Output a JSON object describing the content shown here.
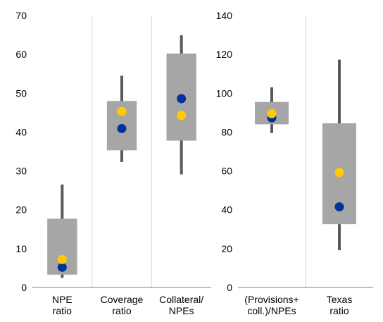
{
  "chart_data": [
    {
      "type": "boxplot",
      "ylim": [
        0,
        70
      ],
      "yticks": [
        "0",
        "10",
        "20",
        "30",
        "40",
        "50",
        "60",
        "70"
      ],
      "categories": [
        {
          "label_lines": [
            "NPE",
            "ratio"
          ],
          "whisker_low": 2.5,
          "q1": 3.3,
          "q3": 17.7,
          "whisker_high": 26.5,
          "blue": 5.2,
          "yellow": 7.2
        },
        {
          "label_lines": [
            "Coverage",
            "ratio"
          ],
          "whisker_low": 32.3,
          "q1": 35.3,
          "q3": 48.0,
          "whisker_high": 54.5,
          "blue": 40.9,
          "yellow": 45.3
        },
        {
          "label_lines": [
            "Collateral/",
            "NPEs"
          ],
          "whisker_low": 29.1,
          "q1": 37.8,
          "q3": 60.2,
          "whisker_high": 64.9,
          "blue": 48.6,
          "yellow": 44.3
        }
      ]
    },
    {
      "type": "boxplot",
      "ylim": [
        0,
        140
      ],
      "yticks": [
        "0",
        "20",
        "40",
        "60",
        "80",
        "100",
        "120",
        "140"
      ],
      "categories": [
        {
          "label_lines": [
            "(Provisions+",
            "coll.)/NPEs"
          ],
          "whisker_low": 79.5,
          "q1": 84.0,
          "q3": 95.5,
          "whisker_high": 103.0,
          "blue": 87.3,
          "yellow": 89.5
        },
        {
          "label_lines": [
            "Texas",
            "ratio"
          ],
          "whisker_low": 19.2,
          "q1": 32.6,
          "q3": 84.5,
          "whisker_high": 117.3,
          "blue": 41.5,
          "yellow": 59.2
        }
      ]
    }
  ],
  "colors": {
    "box": "#a6a6a6",
    "whisker": "#595959",
    "blue_marker": "#003399",
    "yellow_marker": "#ffcc00",
    "grid": "#d9d9d9",
    "axis": "#808080"
  }
}
